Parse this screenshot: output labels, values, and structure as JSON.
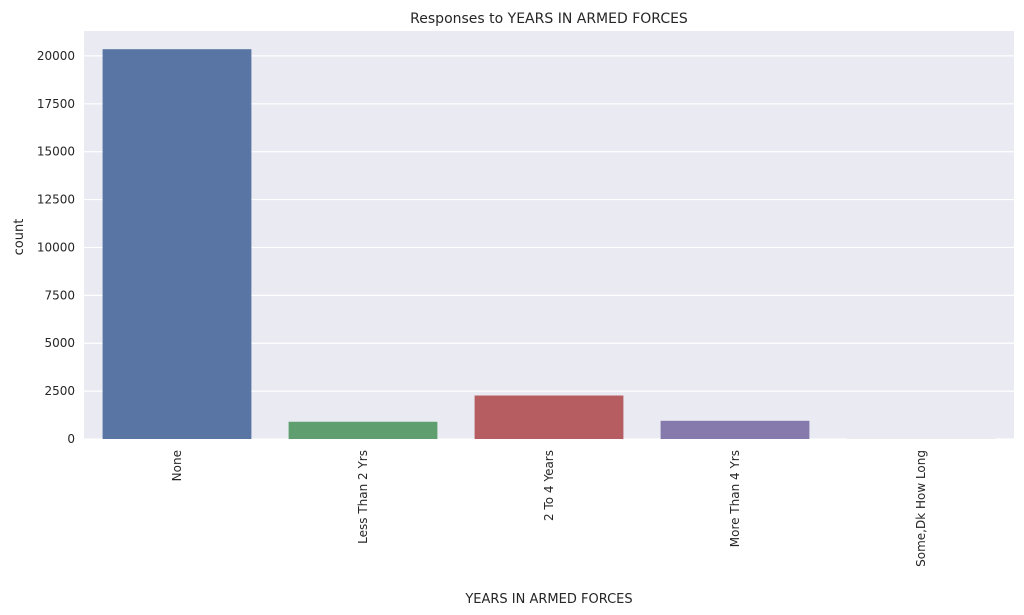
{
  "chart_data": {
    "type": "bar",
    "title": "Responses to YEARS IN ARMED FORCES",
    "xlabel": "YEARS IN ARMED FORCES",
    "ylabel": "count",
    "categories": [
      "None",
      "Less Than 2 Yrs",
      "2 To 4 Years",
      "More Than 4 Yrs",
      "Some,Dk How Long"
    ],
    "values": [
      20350,
      900,
      2270,
      950,
      5
    ],
    "ylim": [
      0,
      21300
    ],
    "yticks": [
      0,
      2500,
      5000,
      7500,
      10000,
      12500,
      15000,
      17500,
      20000
    ],
    "colors": [
      "#5875a4",
      "#5f9e6e",
      "#b55d60",
      "#857aab",
      "#8d7866"
    ],
    "grid": true,
    "background": "#eaeaf2"
  }
}
